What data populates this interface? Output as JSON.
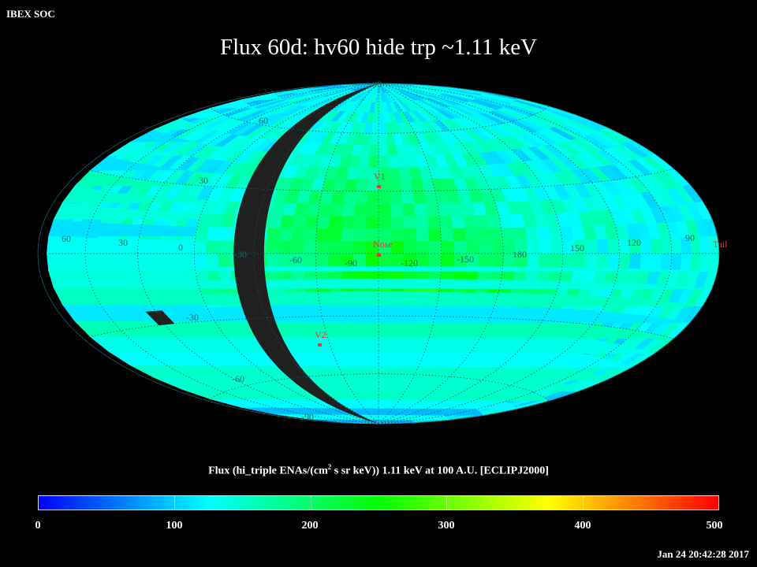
{
  "header": {
    "org": "IBEX SOC",
    "title": "Flux   60d: hv60 hide trp ~1.11 keV"
  },
  "map": {
    "projection": "hammer-aitoff",
    "frame": "ECLIPJ2000",
    "colormap": [
      "#0000ff",
      "#00ffff",
      "#00ff00",
      "#ffff00",
      "#ff0000"
    ],
    "background": "#000000",
    "gap_color": "#202020",
    "longitude_labels": [
      "60",
      "30",
      "0",
      "-30",
      "-60",
      "-90",
      "-120",
      "-150",
      "180",
      "150",
      "120",
      "90"
    ],
    "latitude_labels": [
      "90",
      "60",
      "30",
      "-30",
      "-60",
      "-90"
    ],
    "markers": [
      {
        "id": "v1",
        "label": "V1",
        "color": "#e8353a"
      },
      {
        "id": "nose",
        "label": "Nose",
        "color": "#e8353a"
      },
      {
        "id": "v2",
        "label": "V2",
        "color": "#e8353a"
      },
      {
        "id": "tail",
        "label": "Tail",
        "color": "#e8353a"
      }
    ]
  },
  "colorbar": {
    "title_pre": "Flux (hi_triple ENAs/(cm",
    "title_sup": "2",
    "title_post": " s sr keV))  1.11 keV at 100 A.U. [ECLIPJ2000]",
    "min": 0,
    "max": 500,
    "tick_labels": [
      "0",
      "100",
      "200",
      "300",
      "400",
      "500"
    ]
  },
  "footer": {
    "timestamp": "Jan 24 20:42:28 2017"
  }
}
